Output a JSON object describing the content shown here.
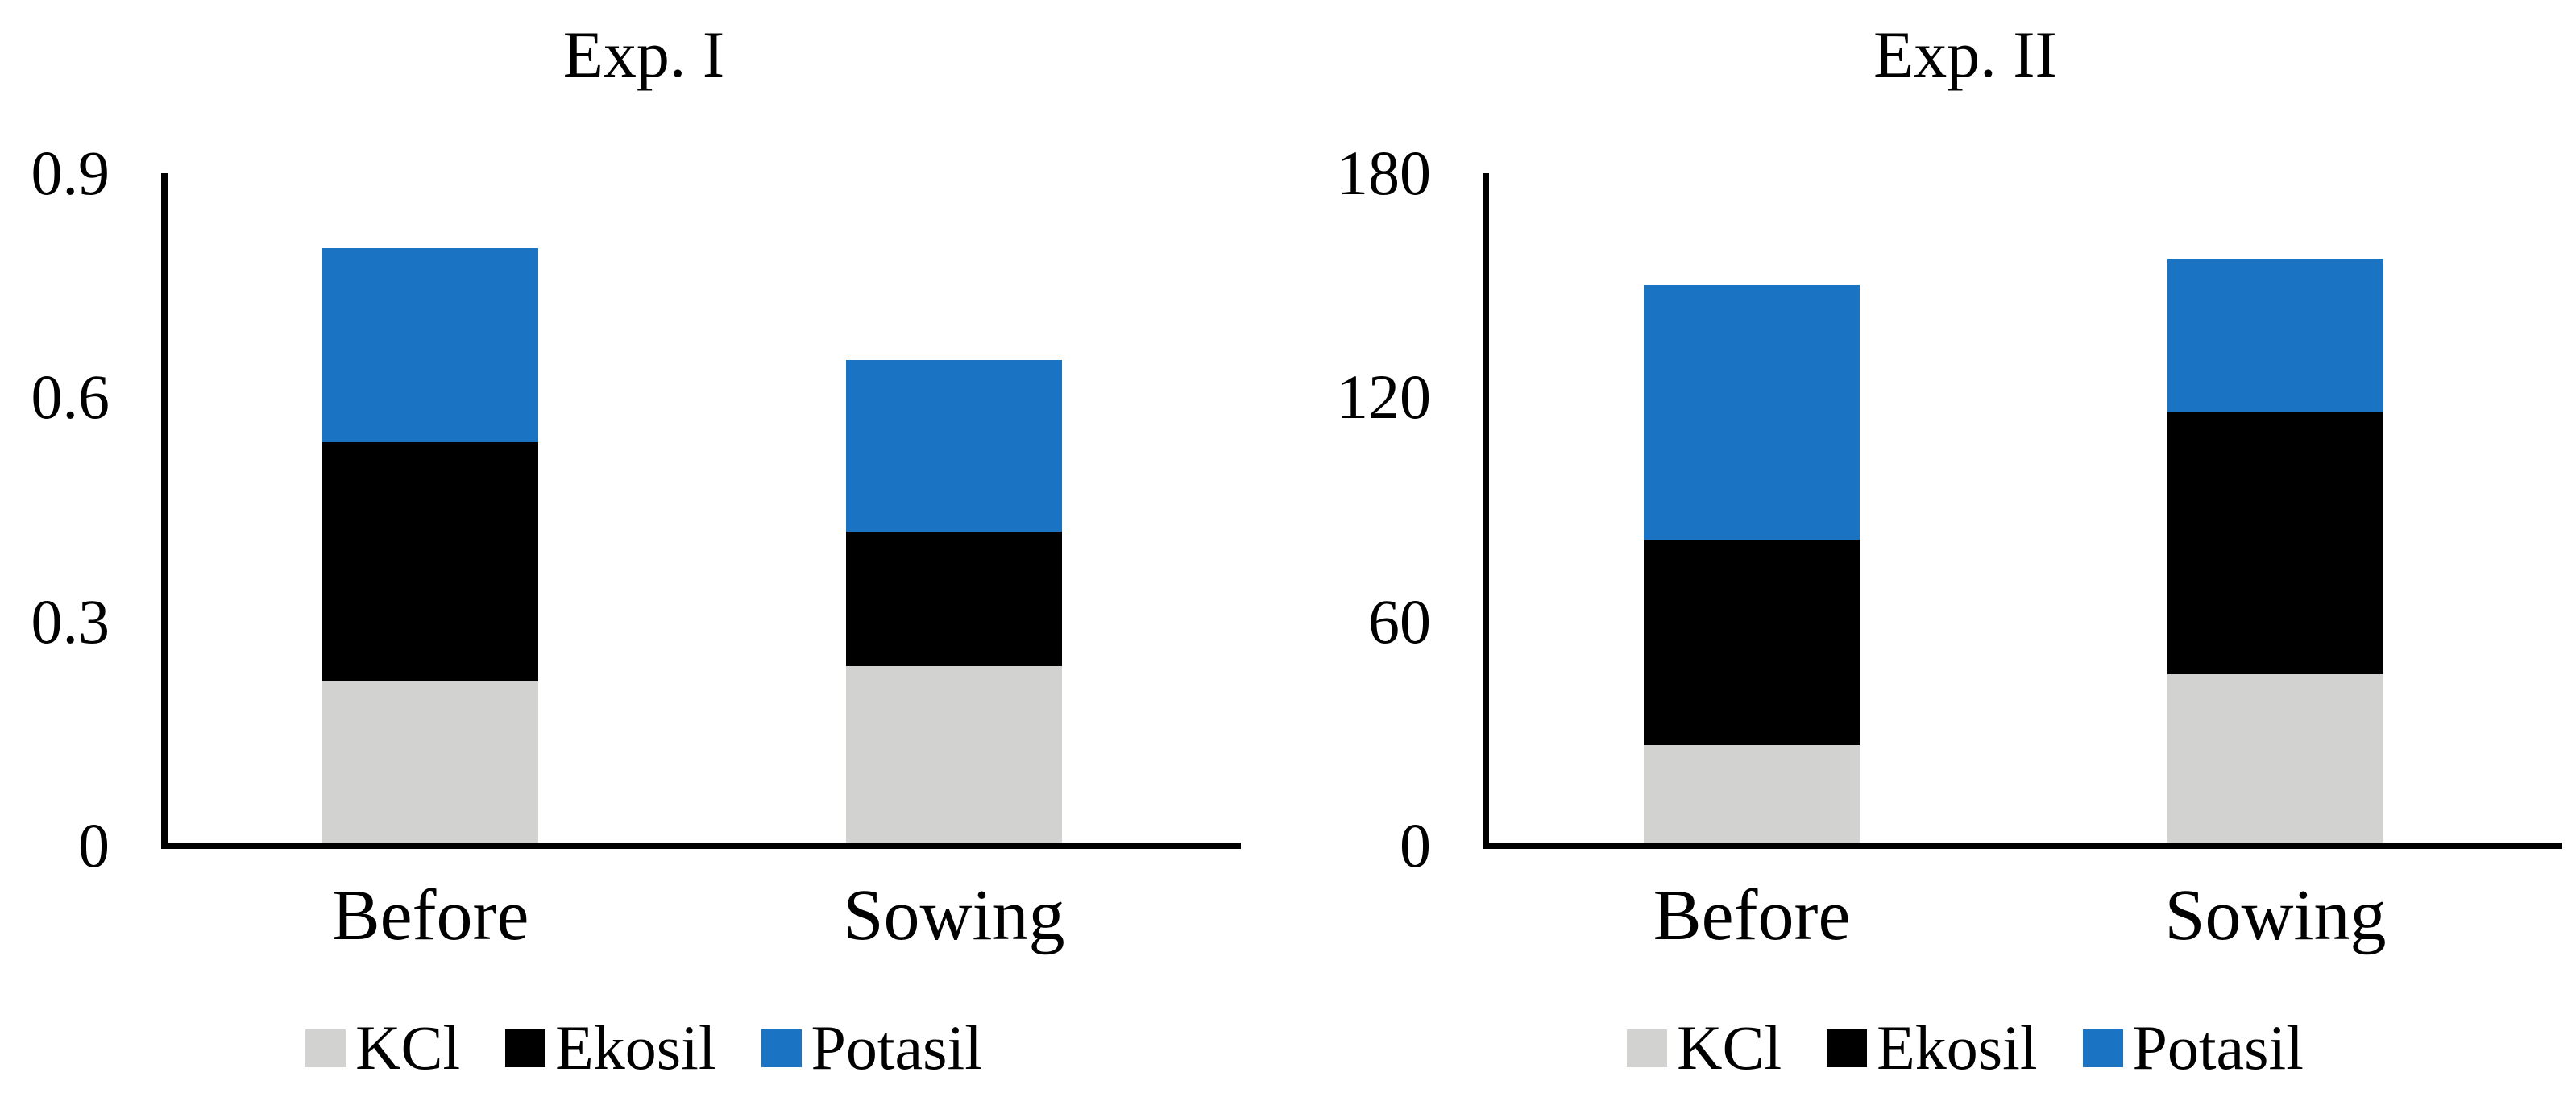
{
  "figure": {
    "background": "#FFFFFF",
    "text_color": "#000000",
    "accent_blue": "#1B73C4",
    "accent_gray": "#D2D2D0",
    "accent_black": "#000000"
  },
  "chart_data": [
    {
      "type": "bar",
      "stacked": true,
      "title": "Exp. I",
      "categories": [
        "Before",
        "Sowing"
      ],
      "series": [
        {
          "name": "KCl",
          "color": "#D2D2D0",
          "values": [
            0.22,
            0.24
          ]
        },
        {
          "name": "Ekosil",
          "color": "#000000",
          "values": [
            0.32,
            0.18
          ]
        },
        {
          "name": "Potasil",
          "color": "#1B73C4",
          "values": [
            0.26,
            0.23
          ]
        }
      ],
      "stack_totals": [
        0.8,
        0.65
      ],
      "ylim": [
        0,
        0.9
      ],
      "y_ticks": [
        {
          "v": 0,
          "label": "0"
        },
        {
          "v": 0.3,
          "label": "0.3"
        },
        {
          "v": 0.6,
          "label": "0.6"
        },
        {
          "v": 0.9,
          "label": "0.9"
        }
      ],
      "grid": false,
      "legend_position": "bottom",
      "legend_items": [
        "KCl",
        "Ekosil",
        "Potasil"
      ]
    },
    {
      "type": "bar",
      "stacked": true,
      "title": "Exp. II",
      "categories": [
        "Before",
        "Sowing"
      ],
      "series": [
        {
          "name": "KCl",
          "color": "#D2D2D0",
          "values": [
            27,
            46
          ]
        },
        {
          "name": "Ekosil",
          "color": "#000000",
          "values": [
            55,
            70
          ]
        },
        {
          "name": "Potasil",
          "color": "#1B73C4",
          "values": [
            68,
            41
          ]
        }
      ],
      "stack_totals": [
        150,
        157
      ],
      "ylim": [
        0,
        180
      ],
      "y_ticks": [
        {
          "v": 0,
          "label": "0"
        },
        {
          "v": 60,
          "label": "60"
        },
        {
          "v": 120,
          "label": "120"
        },
        {
          "v": 180,
          "label": "180"
        }
      ],
      "grid": false,
      "legend_position": "bottom",
      "legend_items": [
        "KCl",
        "Ekosil",
        "Potasil"
      ]
    }
  ]
}
